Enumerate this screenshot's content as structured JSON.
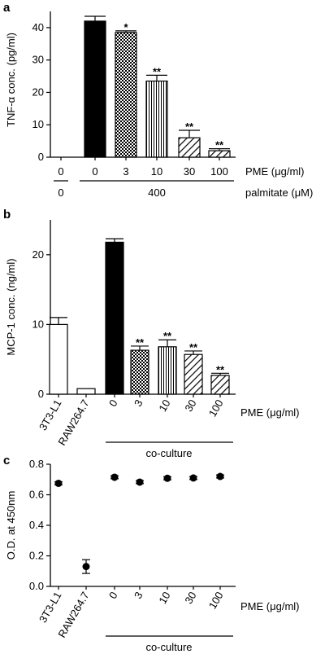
{
  "chart_data": [
    {
      "panel_label": "a",
      "type": "bar",
      "ylabel": "TNF-α conc. (pg/ml)",
      "ylim": [
        0,
        45
      ],
      "yticks": [
        0,
        10,
        20,
        30,
        40
      ],
      "categories": [
        "0",
        "0",
        "3",
        "10",
        "30",
        "100"
      ],
      "values": [
        0,
        42,
        38.5,
        23.5,
        6,
        2
      ],
      "errors": [
        0,
        1.5,
        0.5,
        1.8,
        2.3,
        0.6
      ],
      "fills": [
        "white",
        "black",
        "check",
        "vlines",
        "diag",
        "diag"
      ],
      "significance": [
        "",
        "",
        "*",
        "**",
        "**",
        "**"
      ],
      "row1_label": "PME (μg/ml)",
      "row2_values": [
        "0",
        "400"
      ],
      "row2_label": "palmitate (μM)"
    },
    {
      "panel_label": "b",
      "type": "bar",
      "ylabel": "MCP-1 conc. (ng/ml)",
      "ylim": [
        0,
        25
      ],
      "yticks": [
        0,
        10,
        20
      ],
      "categories": [
        "3T3-L1",
        "RAW264.7",
        "0",
        "3",
        "10",
        "30",
        "100"
      ],
      "values": [
        10,
        0.8,
        21.8,
        6.3,
        6.8,
        5.7,
        2.7
      ],
      "errors": [
        1.0,
        0,
        0.5,
        0.6,
        1.0,
        0.5,
        0.3
      ],
      "fills": [
        "white",
        "white",
        "black",
        "check",
        "vlines",
        "diag",
        "diag"
      ],
      "significance": [
        "",
        "",
        "",
        "**",
        "**",
        "**",
        "**"
      ],
      "row1_label": "PME (μg/ml)",
      "group_label": "co-culture"
    },
    {
      "panel_label": "c",
      "type": "scatter",
      "ylabel": "O.D. at 450nm",
      "ylim": [
        0.0,
        0.8
      ],
      "yticks": [
        "0.0",
        "0.2",
        "0.4",
        "0.6",
        "0.8"
      ],
      "categories": [
        "3T3-L1",
        "RAW264.7",
        "0",
        "3",
        "10",
        "30",
        "100"
      ],
      "values": [
        0.675,
        0.13,
        0.715,
        0.683,
        0.708,
        0.71,
        0.72
      ],
      "errors": [
        0.01,
        0.045,
        0.01,
        0.01,
        0.01,
        0.01,
        0.01
      ],
      "row1_label": "PME (μg/ml)",
      "group_label": "co-culture"
    }
  ]
}
